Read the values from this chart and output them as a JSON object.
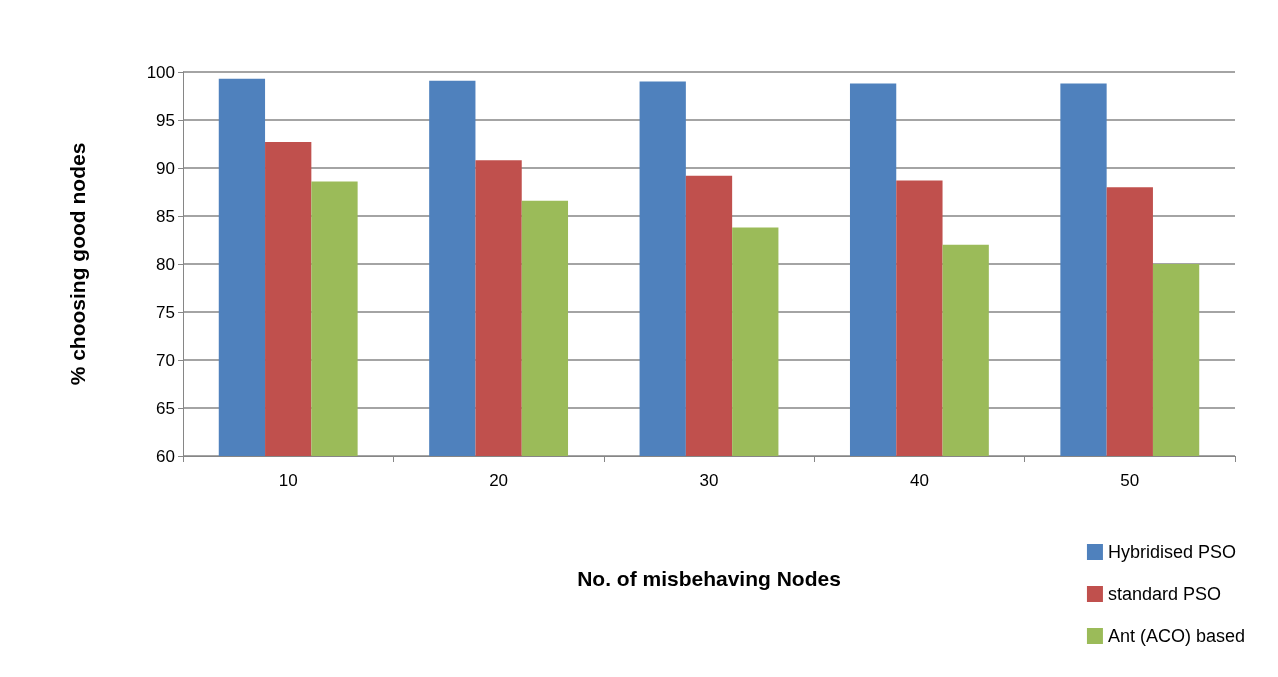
{
  "chart_data": {
    "type": "bar",
    "xlabel": "No. of misbehaving Nodes",
    "ylabel": "% choosing good nodes",
    "categories": [
      "10",
      "20",
      "30",
      "40",
      "50"
    ],
    "series": [
      {
        "name": "Hybridised PSO",
        "color": "#4f81bd",
        "values": [
          99.3,
          99.1,
          99.0,
          98.8,
          98.8
        ]
      },
      {
        "name": "standard PSO",
        "color": "#c0504d",
        "values": [
          92.7,
          90.8,
          89.2,
          88.7,
          88.0
        ]
      },
      {
        "name": "Ant (ACO) based",
        "color": "#9bbb59",
        "values": [
          88.6,
          86.6,
          83.8,
          82.0,
          80.0
        ]
      }
    ],
    "ylim": [
      60,
      100
    ],
    "yticks": [
      60,
      65,
      70,
      75,
      80,
      85,
      90,
      95,
      100
    ],
    "grid": "y",
    "legend": "bottom right"
  }
}
